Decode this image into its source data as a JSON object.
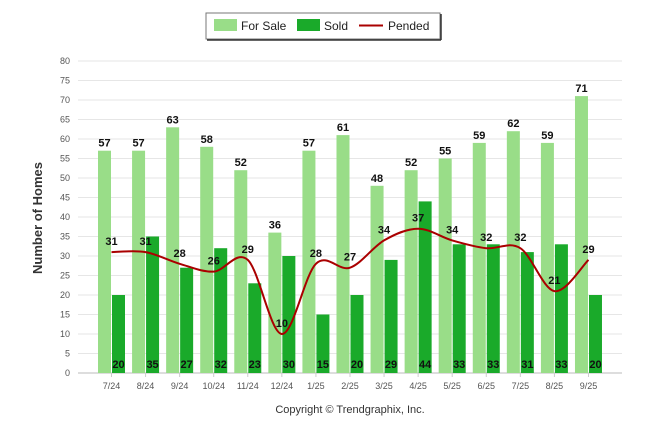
{
  "chart_data": {
    "type": "bar",
    "title": "",
    "xlabel": "",
    "ylabel": "Number of Homes",
    "ylim": [
      0,
      80
    ],
    "ytick_step": 5,
    "categories": [
      "7/24",
      "8/24",
      "9/24",
      "10/24",
      "11/24",
      "12/24",
      "1/25",
      "2/25",
      "3/25",
      "4/25",
      "5/25",
      "6/25",
      "7/25",
      "8/25",
      "9/25"
    ],
    "series": [
      {
        "name": "For Sale",
        "type": "bar",
        "color": "#99dd88",
        "values": [
          57,
          57,
          63,
          58,
          52,
          36,
          57,
          61,
          48,
          52,
          55,
          59,
          62,
          59,
          71
        ]
      },
      {
        "name": "Sold",
        "type": "bar",
        "color": "#1aaa2a",
        "values": [
          20,
          35,
          27,
          32,
          23,
          30,
          15,
          20,
          29,
          44,
          33,
          33,
          31,
          33,
          20
        ]
      },
      {
        "name": "Pended",
        "type": "line",
        "color": "#aa0000",
        "values": [
          31,
          31,
          28,
          26,
          29,
          10,
          28,
          27,
          34,
          37,
          34,
          32,
          32,
          21,
          29
        ]
      }
    ],
    "legend": {
      "position": "top-center"
    },
    "grid": true
  },
  "footer": {
    "copyright": "Copyright © Trendgraphix, Inc."
  }
}
